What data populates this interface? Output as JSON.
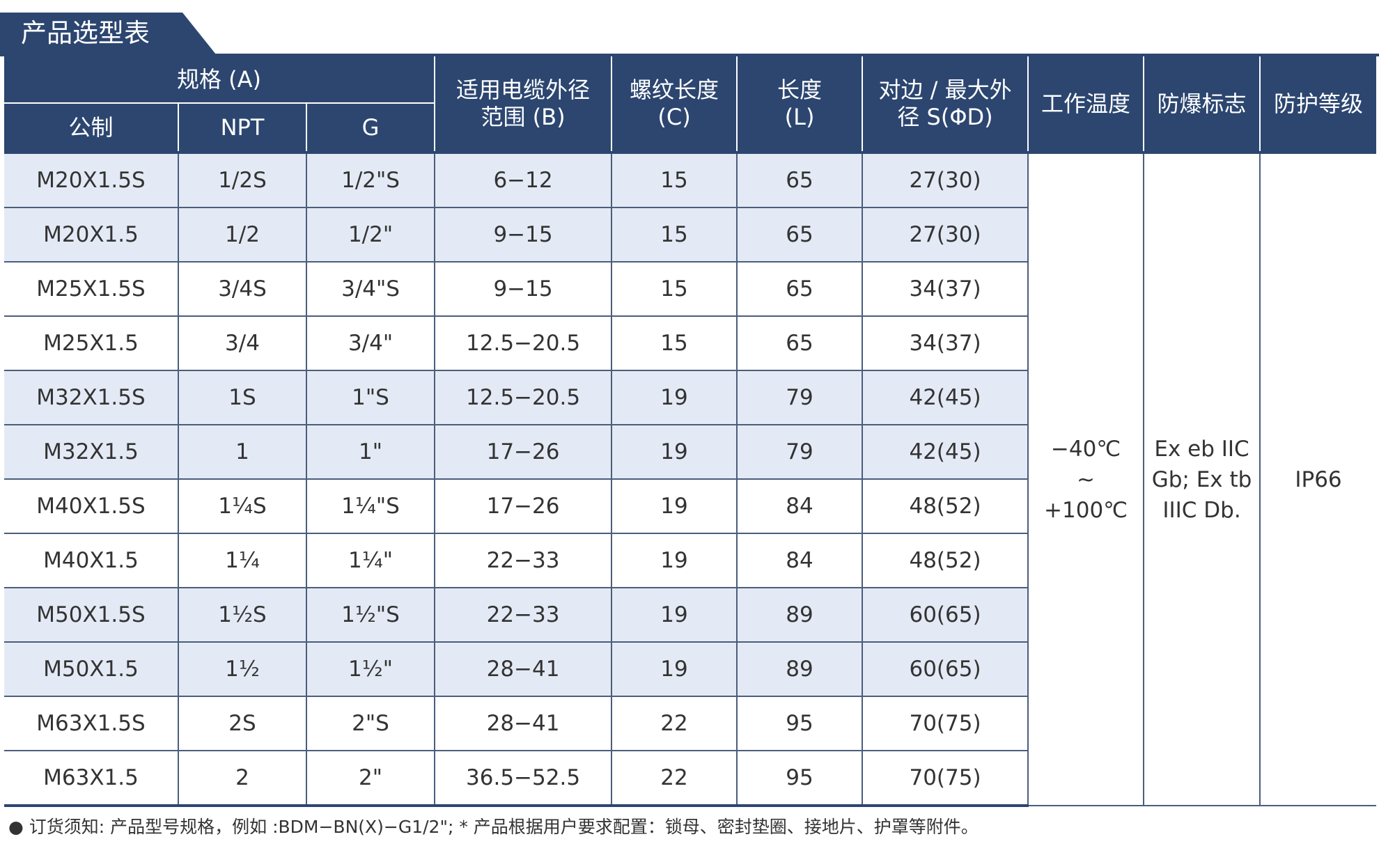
{
  "title": "产品选型表",
  "header": {
    "spec_group": "规格 (A)",
    "metric": "公制",
    "npt": "NPT",
    "g": "G",
    "cable_range": "适用电缆外径\n范围 (B)",
    "thread_length": "螺纹长度\n(C)",
    "length": "长度\n(L)",
    "across_flats": "对边 / 最大外\n径 S(ΦD)",
    "work_temp": "工作温度",
    "ex_mark": "防爆标志",
    "protection": "防护等级"
  },
  "rows": [
    [
      "M20X1.5S",
      "1/2S",
      "1/2\"S",
      "6−12",
      "15",
      "65",
      "27(30)"
    ],
    [
      "M20X1.5",
      "1/2",
      "1/2\"",
      "9−15",
      "15",
      "65",
      "27(30)"
    ],
    [
      "M25X1.5S",
      "3/4S",
      "3/4\"S",
      "9−15",
      "15",
      "65",
      "34(37)"
    ],
    [
      "M25X1.5",
      "3/4",
      "3/4\"",
      "12.5−20.5",
      "15",
      "65",
      "34(37)"
    ],
    [
      "M32X1.5S",
      "1S",
      "1\"S",
      "12.5−20.5",
      "19",
      "79",
      "42(45)"
    ],
    [
      "M32X1.5",
      "1",
      "1\"",
      "17−26",
      "19",
      "79",
      "42(45)"
    ],
    [
      "M40X1.5S",
      "1¼S",
      "1¼\"S",
      "17−26",
      "19",
      "84",
      "48(52)"
    ],
    [
      "M40X1.5",
      "1¼",
      "1¼\"",
      "22−33",
      "19",
      "84",
      "48(52)"
    ],
    [
      "M50X1.5S",
      "1½S",
      "1½\"S",
      "22−33",
      "19",
      "89",
      "60(65)"
    ],
    [
      "M50X1.5",
      "1½",
      "1½\"",
      "28−41",
      "19",
      "89",
      "60(65)"
    ],
    [
      "M63X1.5S",
      "2S",
      "2\"S",
      "28−41",
      "22",
      "95",
      "70(75)"
    ],
    [
      "M63X1.5",
      "2",
      "2\"",
      "36.5−52.5",
      "22",
      "95",
      "70(75)"
    ]
  ],
  "row_shading": [
    "shaded",
    "shaded",
    "plain",
    "plain",
    "shaded",
    "shaded",
    "plain",
    "plain",
    "shaded",
    "shaded",
    "plain",
    "plain"
  ],
  "merged": {
    "work_temp": "−40℃\n~\n+100℃",
    "ex_mark": "Ex eb IIC\nGb; Ex tb\nIIIC Db.",
    "protection": "IP66"
  },
  "note": "● 订货须知:  产品型号规格，例如 :BDM−BN(X)−G1/2\";   * 产品根据用户要求配置：锁母、密封垫圈、接地片、护罩等附件。",
  "colors": {
    "header_bg": "#2c4670",
    "row_shade": "#e4eaf5",
    "text": "#333333"
  }
}
